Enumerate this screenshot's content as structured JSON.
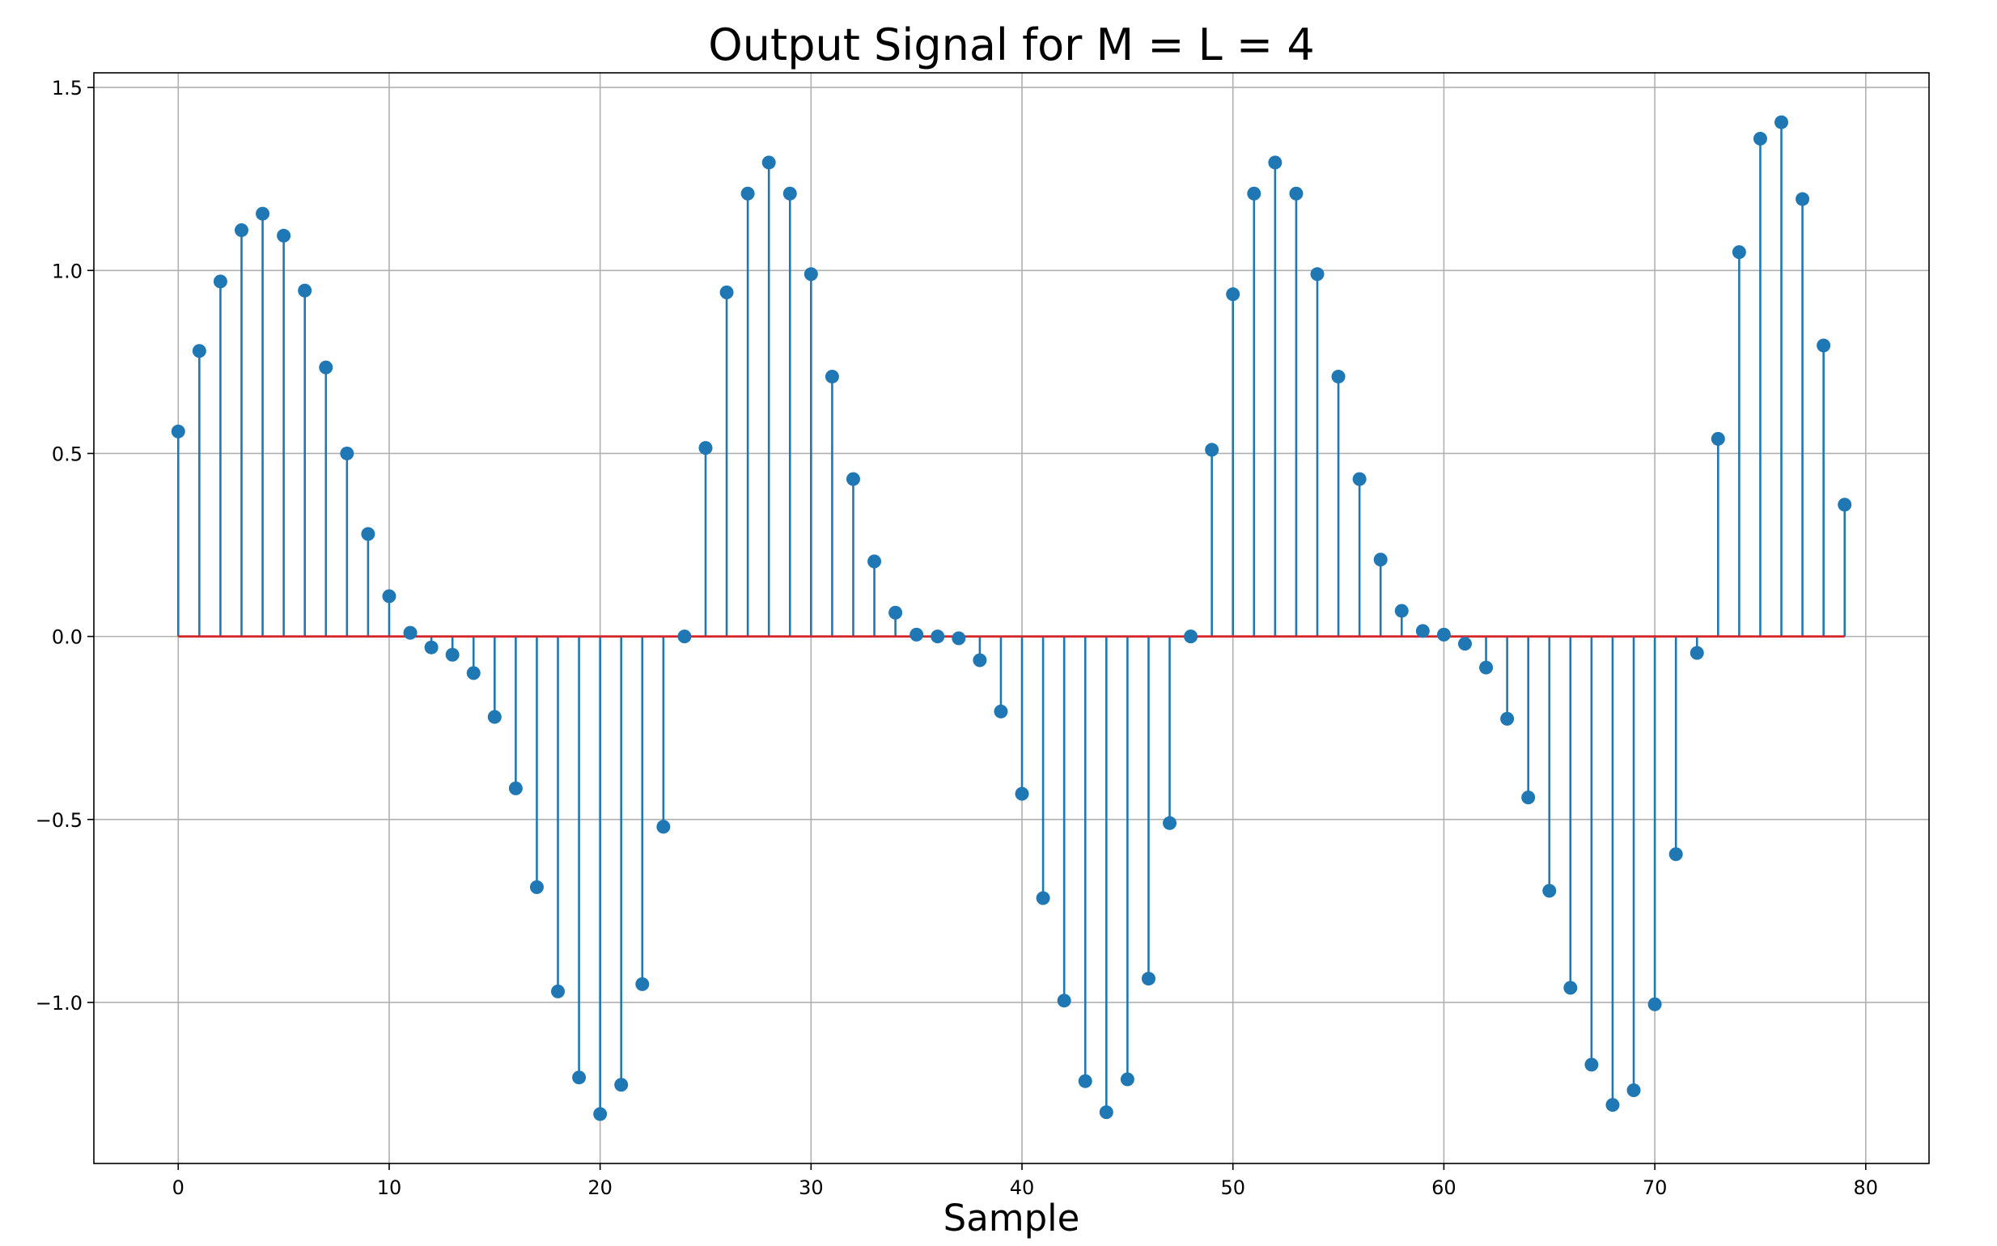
{
  "chart_data": {
    "type": "stem",
    "title": "Output Signal for M = L = 4",
    "xlabel": "Sample",
    "ylabel": "",
    "xlim": [
      -4,
      83
    ],
    "ylim": [
      -1.44,
      1.54
    ],
    "xticks": [
      0,
      10,
      20,
      30,
      40,
      50,
      60,
      70,
      80
    ],
    "xtick_labels": [
      "0",
      "10",
      "20",
      "30",
      "40",
      "50",
      "60",
      "70",
      "80"
    ],
    "yticks": [
      -1.0,
      -0.5,
      0.0,
      0.5,
      1.0,
      1.5
    ],
    "ytick_labels": [
      "−1.0",
      "−0.5",
      "0.0",
      "0.5",
      "1.0",
      "1.5"
    ],
    "grid": true,
    "legend": "none",
    "colors": {
      "stem": "#1f77b4",
      "baseline": "#d62728",
      "grid": "#b0b0b0"
    },
    "series": [
      {
        "x": [
          0,
          1,
          2,
          3,
          4,
          5,
          6,
          7,
          8,
          9,
          10,
          11,
          12,
          13,
          14,
          15,
          16,
          17,
          18,
          19,
          20,
          21,
          22,
          23,
          24,
          25,
          26,
          27,
          28,
          29,
          30,
          31,
          32,
          33,
          34,
          35,
          36,
          37,
          38,
          39,
          40,
          41,
          42,
          43,
          44,
          45,
          46,
          47,
          48,
          49,
          50,
          51,
          52,
          53,
          54,
          55,
          56,
          57,
          58,
          59,
          60,
          61,
          62,
          63,
          64,
          65,
          66,
          67,
          68,
          69,
          70,
          71,
          72,
          73,
          74,
          75,
          76,
          77,
          78,
          79
        ],
        "values": [
          0.56,
          0.78,
          0.97,
          1.11,
          1.155,
          1.095,
          0.945,
          0.735,
          0.5,
          0.28,
          0.11,
          0.01,
          -0.03,
          -0.05,
          -0.1,
          -0.22,
          -0.415,
          -0.685,
          -0.97,
          -1.205,
          -1.305,
          -1.225,
          -0.95,
          -0.52,
          0.0,
          0.515,
          0.94,
          1.21,
          1.295,
          1.21,
          0.99,
          0.71,
          0.43,
          0.205,
          0.065,
          0.005,
          0.0,
          -0.005,
          -0.065,
          -0.205,
          -0.43,
          -0.715,
          -0.995,
          -1.215,
          -1.3,
          -1.21,
          -0.935,
          -0.51,
          0.0,
          0.51,
          0.935,
          1.21,
          1.295,
          1.21,
          0.99,
          0.71,
          0.43,
          0.21,
          0.07,
          0.015,
          0.005,
          -0.02,
          -0.085,
          -0.225,
          -0.44,
          -0.695,
          -0.96,
          -1.17,
          -1.28,
          -1.24,
          -1.005,
          -0.595,
          -0.045,
          0.54,
          1.05,
          1.36,
          1.405,
          1.195,
          0.795,
          0.36
        ]
      }
    ]
  }
}
